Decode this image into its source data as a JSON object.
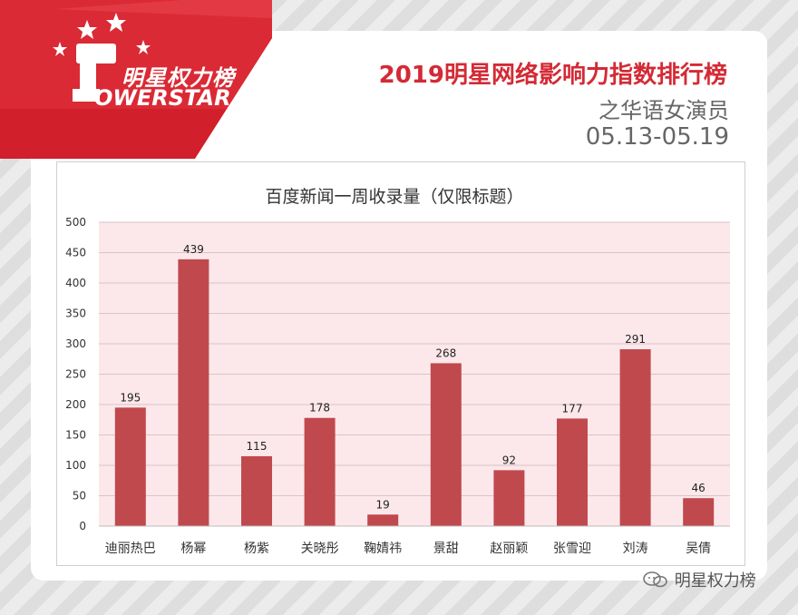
{
  "header": {
    "logo_cn": "明星权力榜",
    "logo_en": "OWERSTAR",
    "title": "2019明星网络影响力指数排行榜",
    "subtitle": "之华语女演员",
    "date_range": "05.13-05.19"
  },
  "footer": {
    "watermark": "明星权力榜"
  },
  "colors": {
    "bar": "#c0494d",
    "plot_bg": "#fce8ea",
    "title_red": "#d42a35",
    "banner_red": "#d11f2b"
  },
  "chart_data": {
    "type": "bar",
    "title": "百度新闻一周收录量（仅限标题）",
    "categories": [
      "迪丽热巴",
      "杨幂",
      "杨紫",
      "关晓彤",
      "鞠婧祎",
      "景甜",
      "赵丽颖",
      "张雪迎",
      "刘涛",
      "吴倩"
    ],
    "values": [
      195,
      439,
      115,
      178,
      19,
      268,
      92,
      177,
      291,
      46
    ],
    "ylim": [
      0,
      500
    ],
    "yticks": [
      0,
      50,
      100,
      150,
      200,
      250,
      300,
      350,
      400,
      450,
      500
    ],
    "grid": true,
    "legend": "none",
    "data_labels": true
  }
}
